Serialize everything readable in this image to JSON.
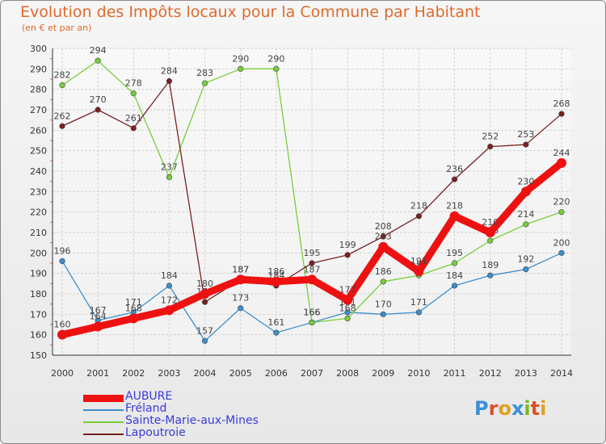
{
  "header": {
    "title": "Evolution des Impôts locaux pour la Commune par Habitant",
    "subtitle": "(en € et par an)"
  },
  "brand": {
    "letters": [
      "P",
      "r",
      "o",
      "x",
      "i",
      "t",
      "i"
    ],
    "letter_colors": [
      "#3b8fd6",
      "#e0502a",
      "#e0a020",
      "#3b8fd6",
      "#7ab828",
      "#e0502a",
      "#e0a020"
    ]
  },
  "chart_data": {
    "type": "line",
    "title": "Evolution des Impôts locaux pour la Commune par Habitant",
    "subtitle": "(en € et par an)",
    "xlabel": "",
    "ylabel": "",
    "categories": [
      "2000",
      "2001",
      "2002",
      "2003",
      "2004",
      "2005",
      "2006",
      "2007",
      "2008",
      "2009",
      "2010",
      "2011",
      "2012",
      "2013",
      "2014"
    ],
    "ylim": [
      150,
      300
    ],
    "yticks": [
      150,
      160,
      170,
      180,
      190,
      200,
      210,
      220,
      230,
      240,
      250,
      260,
      270,
      280,
      290,
      300
    ],
    "grid": true,
    "legend_position": "bottom-left",
    "series": [
      {
        "name": "AUBURE",
        "color": "#ee1111",
        "emphasis": true,
        "values": [
          160,
          164,
          168,
          172,
          180,
          187,
          186,
          187,
          177,
          203,
          191,
          218,
          210,
          230,
          244
        ]
      },
      {
        "name": "Fréland",
        "color": "#3c8fce",
        "emphasis": false,
        "values": [
          196,
          167,
          171,
          184,
          157,
          173,
          161,
          166,
          171,
          170,
          171,
          184,
          189,
          192,
          200
        ]
      },
      {
        "name": "Sainte-Marie-aux-Mines",
        "color": "#76cf3a",
        "emphasis": false,
        "values": [
          282,
          294,
          278,
          237,
          283,
          290,
          290,
          166,
          168,
          186,
          189,
          195,
          206,
          214,
          220
        ]
      },
      {
        "name": "Lapoutroie",
        "color": "#7a2020",
        "emphasis": false,
        "values": [
          262,
          270,
          261,
          284,
          176,
          187,
          184,
          195,
          199,
          208,
          218,
          236,
          252,
          253,
          268
        ]
      }
    ]
  }
}
